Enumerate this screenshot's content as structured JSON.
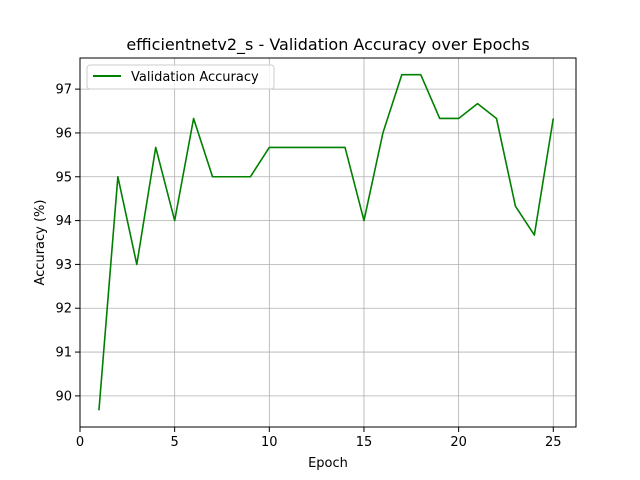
{
  "chart_data": {
    "type": "line",
    "title": "efficientnetv2_s - Validation Accuracy over Epochs",
    "xlabel": "Epoch",
    "ylabel": "Accuracy (%)",
    "x": [
      1,
      2,
      3,
      4,
      5,
      6,
      7,
      8,
      9,
      10,
      11,
      12,
      13,
      14,
      15,
      16,
      17,
      18,
      19,
      20,
      21,
      22,
      23,
      24,
      25
    ],
    "series": [
      {
        "name": "Validation Accuracy",
        "color": "#008000",
        "values": [
          89.67,
          95.0,
          93.0,
          95.67,
          94.0,
          96.33,
          95.0,
          95.0,
          95.0,
          95.67,
          95.67,
          95.67,
          95.67,
          95.67,
          94.0,
          96.0,
          97.33,
          97.33,
          96.33,
          96.33,
          96.67,
          96.33,
          94.33,
          93.67,
          96.33
        ]
      }
    ],
    "xlim": [
      0,
      26.2
    ],
    "ylim": [
      89.29,
      97.71
    ],
    "xticks": [
      0,
      5,
      10,
      15,
      20,
      25
    ],
    "yticks": [
      90,
      91,
      92,
      93,
      94,
      95,
      96,
      97
    ],
    "grid": true,
    "legend_position": "upper-left"
  }
}
